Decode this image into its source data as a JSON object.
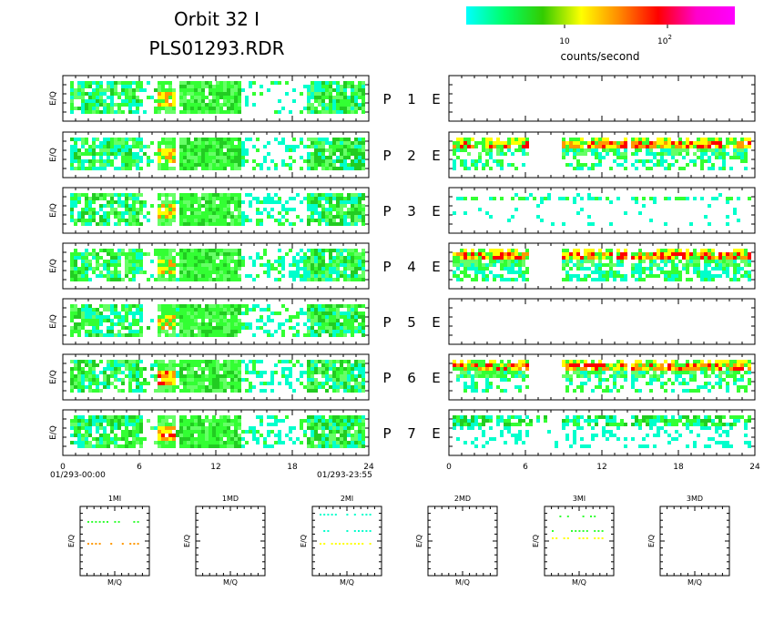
{
  "header": {
    "title_line1": "Orbit 32 I",
    "title_line2": "PLS01293.RDR"
  },
  "colorbar": {
    "stops": [
      "#00ffff",
      "#00ff66",
      "#33cc00",
      "#ffff00",
      "#ff8800",
      "#ff0000",
      "#ff00cc",
      "#ff00ff"
    ],
    "tick_10": "10",
    "tick_100_base": "10",
    "tick_100_exp": "2",
    "label": "counts/second"
  },
  "panels": {
    "ylabel": "E/Q",
    "rows": [
      {
        "p_label": "P",
        "num": "1",
        "e_label": "E"
      },
      {
        "p_label": "P",
        "num": "2",
        "e_label": "E"
      },
      {
        "p_label": "P",
        "num": "3",
        "e_label": "E"
      },
      {
        "p_label": "P",
        "num": "4",
        "e_label": "E"
      },
      {
        "p_label": "P",
        "num": "5",
        "e_label": "E"
      },
      {
        "p_label": "P",
        "num": "6",
        "e_label": "E"
      },
      {
        "p_label": "P",
        "num": "7",
        "e_label": "E"
      }
    ]
  },
  "xaxis": {
    "ticks": [
      "0",
      "6",
      "12",
      "18",
      "24"
    ],
    "start_time": "01/293-00:00",
    "end_time": "01/293-23:55"
  },
  "chart_data": [
    {
      "type": "heatmap",
      "title": "Orbit 32 I PLS01293.RDR",
      "ylabel": "E/Q",
      "xlim": [
        0,
        24
      ],
      "x_ticks": [
        0,
        6,
        12,
        18,
        24
      ],
      "colorbar_label": "counts/second",
      "colorbar_ticks": [
        "10",
        "10^2"
      ],
      "description": "Spectrogram panels P1-P7 (left column) showing counts/second over 0-24 h"
    },
    {
      "type": "heatmap",
      "ylabel": "E/Q",
      "xlim": [
        0,
        24
      ],
      "x_ticks": [
        0,
        6,
        12,
        18,
        24
      ],
      "description": "Spectrogram panels E1-E7 (right column); E1 and E5 empty"
    }
  ],
  "mq_panels": [
    {
      "title": "1MI",
      "xlabel": "M/Q",
      "ylabel": "E/Q"
    },
    {
      "title": "1MD",
      "xlabel": "M/Q",
      "ylabel": "E/Q"
    },
    {
      "title": "2MI",
      "xlabel": "M/Q",
      "ylabel": "E/Q"
    },
    {
      "title": "2MD",
      "xlabel": "M/Q",
      "ylabel": "E/Q"
    },
    {
      "title": "3MI",
      "xlabel": "M/Q",
      "ylabel": "E/Q"
    },
    {
      "title": "3MD",
      "xlabel": "M/Q",
      "ylabel": "E/Q"
    }
  ]
}
